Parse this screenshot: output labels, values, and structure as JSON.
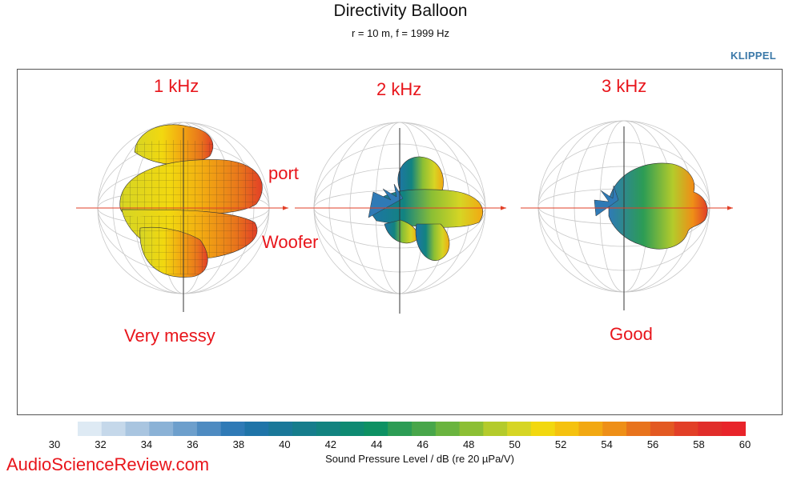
{
  "header": {
    "title": "Directivity Balloon",
    "subtitle": "r = 10 m, f =  1999 Hz",
    "brand": "KLIPPEL"
  },
  "annotations": {
    "b1": "1 kHz",
    "b2": "2 kHz",
    "b3": "3 kHz",
    "port": "port",
    "woofer": "Woofer",
    "messy": "Very messy",
    "good": "Good"
  },
  "colorbar": {
    "label": "Sound Pressure Level / dB (re 20 µPa/V)",
    "ticks": [
      "30",
      "32",
      "34",
      "36",
      "38",
      "40",
      "42",
      "44",
      "46",
      "48",
      "50",
      "52",
      "54",
      "56",
      "58",
      "60"
    ],
    "min": 30,
    "max": 60,
    "colors": [
      "#deeaf4",
      "#c5d8ea",
      "#a9c5e0",
      "#8bb2d6",
      "#6d9fcc",
      "#4e8bc1",
      "#2f7ab6",
      "#1f74a8",
      "#1a7899",
      "#167d8c",
      "#128380",
      "#0e8a72",
      "#0d9163",
      "#2c9c55",
      "#48a64a",
      "#6ab43f",
      "#8cbf34",
      "#b4cb2b",
      "#d6d524",
      "#f2d80f",
      "#f5c20f",
      "#f2a812",
      "#ee8f17",
      "#e8731c",
      "#e35922",
      "#e23f27",
      "#e12d2a",
      "#e8242a"
    ]
  },
  "watermark": "AudioScienceReview.com",
  "chart_data": {
    "type": "balloon",
    "title": "Directivity Balloon",
    "subtitle": "r = 10 m, f =  1999 Hz",
    "colorbar_label": "Sound Pressure Level / dB (re 20 µPa/V)",
    "colorbar_range": [
      30,
      60
    ],
    "balloons": [
      {
        "label": "1 kHz",
        "note": "Very messy",
        "callouts": [
          "port",
          "Woofer"
        ]
      },
      {
        "label": "2 kHz",
        "note": ""
      },
      {
        "label": "3 kHz",
        "note": "Good"
      }
    ]
  }
}
